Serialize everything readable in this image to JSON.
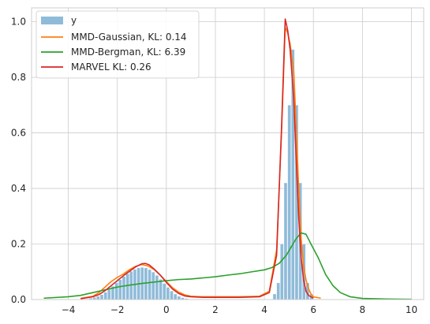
{
  "chart_data": {
    "type": "histogram+line",
    "title": "",
    "xlabel": "",
    "ylabel": "",
    "xlim": [
      -5.5,
      10.5
    ],
    "ylim": [
      0,
      1.05
    ],
    "x_ticks": [
      -4,
      -2,
      0,
      2,
      4,
      6,
      8,
      10
    ],
    "x_tick_labels": [
      "−4",
      "−2",
      "0",
      "2",
      "4",
      "6",
      "8",
      "10"
    ],
    "y_ticks": [
      0.0,
      0.2,
      0.4,
      0.6,
      0.8,
      1.0
    ],
    "y_tick_labels": [
      "0.0",
      "0.2",
      "0.4",
      "0.6",
      "0.8",
      "1.0"
    ],
    "grid": true,
    "legend_position": "top-left",
    "histogram": {
      "name": "y",
      "color": "#8fbbd9",
      "bin_width": 0.15,
      "bins": [
        [
          -3.15,
          0.005
        ],
        [
          -3.0,
          0.008
        ],
        [
          -2.85,
          0.012
        ],
        [
          -2.7,
          0.018
        ],
        [
          -2.55,
          0.026
        ],
        [
          -2.4,
          0.036
        ],
        [
          -2.25,
          0.048
        ],
        [
          -2.1,
          0.06
        ],
        [
          -1.95,
          0.072
        ],
        [
          -1.8,
          0.083
        ],
        [
          -1.65,
          0.093
        ],
        [
          -1.5,
          0.102
        ],
        [
          -1.35,
          0.109
        ],
        [
          -1.2,
          0.114
        ],
        [
          -1.05,
          0.116
        ],
        [
          -0.9,
          0.114
        ],
        [
          -0.75,
          0.108
        ],
        [
          -0.6,
          0.099
        ],
        [
          -0.45,
          0.087
        ],
        [
          -0.3,
          0.073
        ],
        [
          -0.15,
          0.058
        ],
        [
          0.0,
          0.044
        ],
        [
          0.15,
          0.031
        ],
        [
          0.3,
          0.02
        ],
        [
          0.45,
          0.012
        ],
        [
          0.6,
          0.007
        ],
        [
          0.75,
          0.004
        ],
        [
          4.35,
          0.02
        ],
        [
          4.5,
          0.06
        ],
        [
          4.65,
          0.2
        ],
        [
          4.8,
          0.42
        ],
        [
          4.95,
          0.7
        ],
        [
          5.1,
          0.9
        ],
        [
          5.25,
          0.7
        ],
        [
          5.4,
          0.42
        ],
        [
          5.55,
          0.2
        ],
        [
          5.7,
          0.06
        ],
        [
          5.85,
          0.02
        ]
      ]
    },
    "series": [
      {
        "name": "MMD-Gaussian, KL: 0.14",
        "color": "#ff7f0e",
        "points": [
          [
            -3.5,
            0.004
          ],
          [
            -3.0,
            0.012
          ],
          [
            -2.75,
            0.025
          ],
          [
            -2.5,
            0.045
          ],
          [
            -2.25,
            0.065
          ],
          [
            -2.0,
            0.08
          ],
          [
            -1.75,
            0.092
          ],
          [
            -1.5,
            0.108
          ],
          [
            -1.25,
            0.12
          ],
          [
            -1.0,
            0.126
          ],
          [
            -0.75,
            0.121
          ],
          [
            -0.5,
            0.108
          ],
          [
            -0.25,
            0.088
          ],
          [
            0.0,
            0.065
          ],
          [
            0.25,
            0.043
          ],
          [
            0.5,
            0.027
          ],
          [
            0.75,
            0.017
          ],
          [
            1.0,
            0.012
          ],
          [
            1.5,
            0.01
          ],
          [
            2.0,
            0.01
          ],
          [
            3.0,
            0.01
          ],
          [
            3.8,
            0.012
          ],
          [
            4.2,
            0.03
          ],
          [
            4.5,
            0.18
          ],
          [
            4.7,
            0.6
          ],
          [
            4.85,
            0.98
          ],
          [
            4.95,
            0.96
          ],
          [
            5.05,
            0.92
          ],
          [
            5.2,
            0.82
          ],
          [
            5.3,
            0.62
          ],
          [
            5.4,
            0.4
          ],
          [
            5.5,
            0.22
          ],
          [
            5.6,
            0.12
          ],
          [
            5.7,
            0.07
          ],
          [
            5.8,
            0.04
          ],
          [
            5.9,
            0.02
          ],
          [
            6.0,
            0.01
          ],
          [
            6.3,
            0.005
          ]
        ]
      },
      {
        "name": "MMD-Bergman, KL: 6.39",
        "color": "#2ca02c",
        "points": [
          [
            -5.0,
            0.005
          ],
          [
            -4.0,
            0.01
          ],
          [
            -3.5,
            0.015
          ],
          [
            -3.0,
            0.025
          ],
          [
            -2.5,
            0.035
          ],
          [
            -2.0,
            0.045
          ],
          [
            -1.5,
            0.052
          ],
          [
            -1.0,
            0.058
          ],
          [
            -0.5,
            0.063
          ],
          [
            0.0,
            0.068
          ],
          [
            0.5,
            0.072
          ],
          [
            1.0,
            0.074
          ],
          [
            1.5,
            0.078
          ],
          [
            2.0,
            0.082
          ],
          [
            2.5,
            0.088
          ],
          [
            3.0,
            0.093
          ],
          [
            3.5,
            0.1
          ],
          [
            4.0,
            0.107
          ],
          [
            4.3,
            0.115
          ],
          [
            4.6,
            0.13
          ],
          [
            4.9,
            0.16
          ],
          [
            5.1,
            0.19
          ],
          [
            5.3,
            0.22
          ],
          [
            5.5,
            0.24
          ],
          [
            5.7,
            0.235
          ],
          [
            5.9,
            0.2
          ],
          [
            6.2,
            0.15
          ],
          [
            6.5,
            0.09
          ],
          [
            6.8,
            0.05
          ],
          [
            7.1,
            0.025
          ],
          [
            7.5,
            0.01
          ],
          [
            8.0,
            0.004
          ],
          [
            9.0,
            0.002
          ],
          [
            10.0,
            0.001
          ]
        ]
      },
      {
        "name": "MARVEL KL: 0.26",
        "color": "#d62728",
        "points": [
          [
            -3.5,
            0.003
          ],
          [
            -3.0,
            0.01
          ],
          [
            -2.75,
            0.018
          ],
          [
            -2.5,
            0.032
          ],
          [
            -2.25,
            0.05
          ],
          [
            -2.0,
            0.068
          ],
          [
            -1.75,
            0.086
          ],
          [
            -1.5,
            0.102
          ],
          [
            -1.25,
            0.118
          ],
          [
            -1.0,
            0.129
          ],
          [
            -0.85,
            0.13
          ],
          [
            -0.7,
            0.125
          ],
          [
            -0.5,
            0.11
          ],
          [
            -0.25,
            0.088
          ],
          [
            0.0,
            0.062
          ],
          [
            0.25,
            0.038
          ],
          [
            0.5,
            0.022
          ],
          [
            0.75,
            0.013
          ],
          [
            1.0,
            0.01
          ],
          [
            1.5,
            0.008
          ],
          [
            2.0,
            0.008
          ],
          [
            3.0,
            0.008
          ],
          [
            3.8,
            0.01
          ],
          [
            4.2,
            0.025
          ],
          [
            4.5,
            0.16
          ],
          [
            4.7,
            0.62
          ],
          [
            4.85,
            1.01
          ],
          [
            4.95,
            0.97
          ],
          [
            5.05,
            0.9
          ],
          [
            5.2,
            0.72
          ],
          [
            5.3,
            0.5
          ],
          [
            5.4,
            0.3
          ],
          [
            5.5,
            0.15
          ],
          [
            5.6,
            0.07
          ],
          [
            5.7,
            0.03
          ],
          [
            5.8,
            0.015
          ],
          [
            6.0,
            0.005
          ]
        ]
      }
    ]
  }
}
